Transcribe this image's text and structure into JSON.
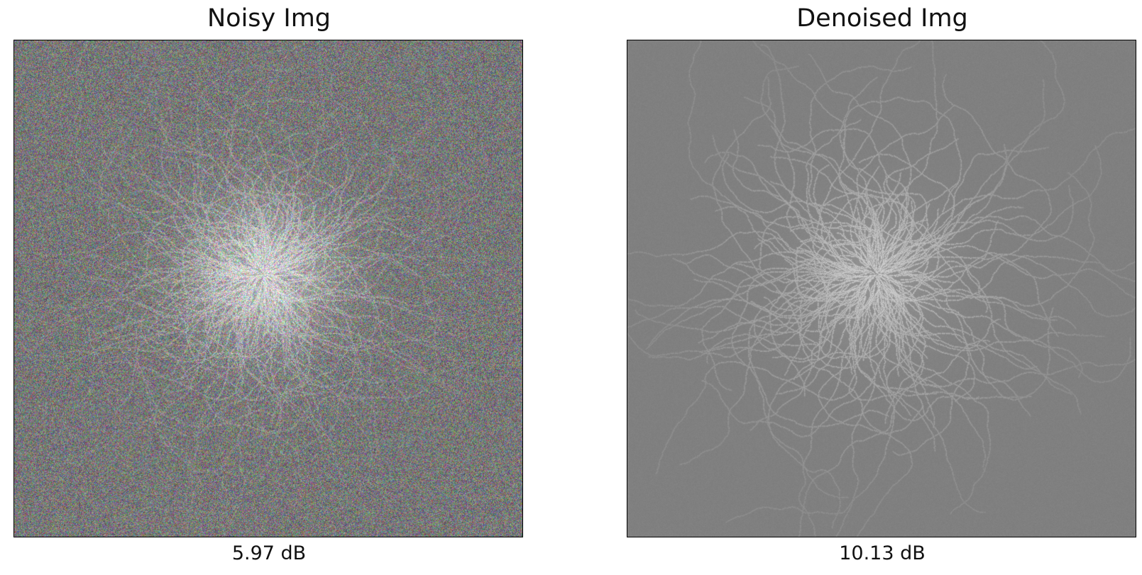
{
  "panels": [
    {
      "title": "Noisy Img",
      "caption": "5.97 dB",
      "image": "noisy-retina-vessels"
    },
    {
      "title": "Denoised Img",
      "caption": "10.13 dB",
      "image": "denoised-retina-vessels",
      "background_color": "#808080"
    }
  ]
}
